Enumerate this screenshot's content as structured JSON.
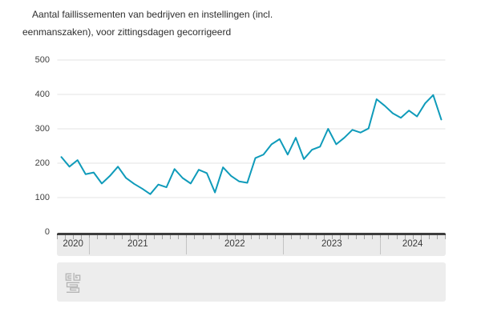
{
  "title_lines": [
    "Aantal faillissementen van bedrijven en instellingen (incl.",
    "eenmanszaken), voor zittingsdagen gecorrigeerd"
  ],
  "chart_data": {
    "type": "line",
    "title": "Aantal faillissementen van bedrijven en instellingen (incl. eenmanszaken), voor zittingsdagen gecorrigeerd",
    "series": [
      {
        "name": "Aantal faillissementen",
        "values": [
          218,
          190,
          209,
          168,
          173,
          141,
          163,
          190,
          157,
          140,
          126,
          110,
          138,
          130,
          183,
          157,
          141,
          181,
          171,
          115,
          188,
          163,
          147,
          143,
          215,
          225,
          255,
          270,
          225,
          274,
          212,
          239,
          248,
          300,
          255,
          274,
          297,
          289,
          301,
          386,
          367,
          345,
          332,
          353,
          336,
          374,
          398,
          327
        ]
      }
    ],
    "x_axis": {
      "granularity": "month",
      "years": [
        {
          "label": "2020",
          "n_months": 4
        },
        {
          "label": "2021",
          "n_months": 12
        },
        {
          "label": "2022",
          "n_months": 12
        },
        {
          "label": "2023",
          "n_months": 12
        },
        {
          "label": "2024",
          "n_months": 8
        }
      ]
    },
    "y_axis": {
      "ticks": [
        500,
        400,
        300,
        200,
        100,
        0
      ],
      "range": [
        0,
        500
      ]
    },
    "grid": true,
    "legend": false,
    "colors": {
      "line": "#0f9bba",
      "gridline": "#e3e3e3",
      "axis_text": "#3f3f3f",
      "slider_track": "#ebebeb",
      "slider_bar": "#3d3d3d",
      "footer_bg": "#ededed",
      "logo_gray": "#b5b5b5"
    }
  },
  "footer": {
    "logo": "cbs-logo"
  }
}
